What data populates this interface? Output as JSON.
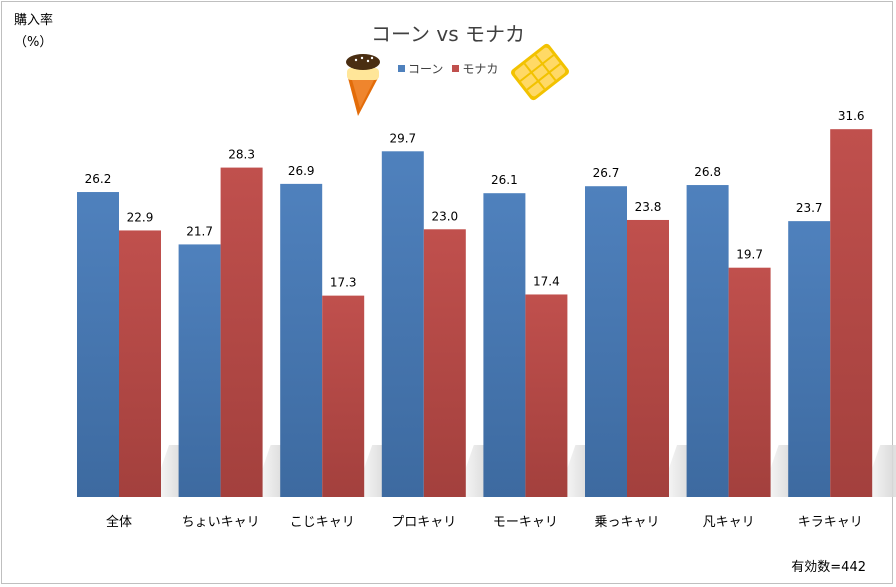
{
  "chart_data": {
    "type": "bar",
    "title": "コーン vs モナカ",
    "ylabel_line1": "購入率",
    "ylabel_line2": "（%）",
    "categories": [
      "全体",
      "ちょいキャリ",
      "こじキャリ",
      "プロキャリ",
      "モーキャリ",
      "乗っキャリ",
      "凡キャリ",
      "キラキャリ"
    ],
    "series": [
      {
        "name": "コーン",
        "color": "#4f81bd",
        "values": [
          26.2,
          21.7,
          26.9,
          29.7,
          26.1,
          26.7,
          26.8,
          23.7
        ]
      },
      {
        "name": "モナカ",
        "color": "#c0504d",
        "values": [
          22.9,
          28.3,
          17.3,
          23.0,
          17.4,
          23.8,
          19.7,
          31.6
        ]
      }
    ],
    "ylim": [
      0,
      35
    ],
    "grid": false,
    "legend_position": "top-center",
    "note": "有効数=442",
    "icons": [
      "ice-cream-cone-icon",
      "monaka-wafer-icon"
    ]
  }
}
